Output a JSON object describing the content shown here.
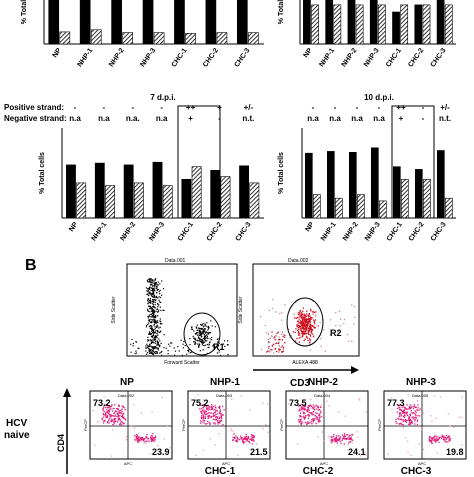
{
  "top_rows": {
    "tick_labels": [
      "NP",
      "NHP-1",
      "NHP-2",
      "NHP-3",
      "CHC-1",
      "CHC-2",
      "CHC-3"
    ],
    "ylabel_left": "% Total cells",
    "ylabel_right": "% Total"
  },
  "strand_table": {
    "positive_label": "Positive strand:",
    "negative_label": "Negative strand:",
    "left_positive": [
      "-",
      "-",
      "-",
      "-",
      "++",
      "+",
      "+/-"
    ],
    "left_negative": [
      "n.a",
      "n.a",
      "n.a.",
      "n.a",
      "+",
      "-",
      "n.t."
    ],
    "right_positive": [
      "-",
      "-",
      "-",
      "-",
      "++",
      "-",
      "+/-"
    ],
    "right_negative": [
      "n.a",
      "n.a",
      "n.a",
      "n.a",
      "+",
      "-",
      "n.t."
    ]
  },
  "panel_b": {
    "label": "B",
    "scatter1": {
      "title": "Data.001",
      "xlabel": "Forward Scatter",
      "ylabel": "Side Scatter",
      "gate": "R1"
    },
    "scatter2": {
      "title": "Data.002",
      "xlabel": "ALEXA 488",
      "ylabel": "Side Scatter",
      "gate": "R2"
    },
    "cd3_label": "CD3",
    "cd4_label": "CD4",
    "hcv_label_1": "HCV",
    "hcv_label_2": "naive",
    "plots": [
      {
        "name": "NP",
        "data": "Data.002",
        "ul": "73.2",
        "lr": "23.9"
      },
      {
        "name": "NHP-1",
        "data": "Data.003",
        "ul": "75.2",
        "lr": "21.5"
      },
      {
        "name": "NHP-2",
        "data": "Data.004",
        "ul": "73.5",
        "lr": "24.1"
      },
      {
        "name": "NHP-3",
        "data": "Data.005",
        "ul": "77.3",
        "lr": "19.8"
      }
    ],
    "bottom_names": [
      "CHC-1",
      "CHC-2",
      "CHC-3"
    ],
    "axis_apc": "APC",
    "axis_pcy": "PerCP"
  },
  "chart_data": [
    {
      "type": "bar",
      "title": "",
      "categories": [
        "NP",
        "NHP-1",
        "NHP-2",
        "NHP-3",
        "CHC-1",
        "CHC-2",
        "CHC-3"
      ],
      "ylabel": "% Total",
      "series": [
        {
          "values": [
            75,
            75,
            75,
            75,
            75,
            75,
            75
          ]
        },
        {
          "values": [
            17,
            20,
            16,
            16,
            15,
            16,
            16
          ]
        }
      ]
    },
    {
      "type": "bar",
      "title": "",
      "categories": [
        "NP",
        "NHP-1",
        "NHP-2",
        "NHP-3",
        "CHC-1",
        "CHC-2",
        "CHC-3"
      ],
      "ylabel": "% Total",
      "series": [
        {
          "values": [
            75,
            75,
            75,
            75,
            45,
            55,
            75
          ]
        },
        {
          "values": [
            55,
            55,
            55,
            55,
            55,
            55,
            55
          ]
        }
      ]
    },
    {
      "type": "bar",
      "title": "7 d.p.i.",
      "categories": [
        "NP",
        "NHP-1",
        "NHP-2",
        "NHP-3",
        "CHC-1",
        "CHC-2",
        "CHC-3"
      ],
      "ylabel": "% Total cells",
      "series": [
        {
          "values": [
            59,
            61,
            59,
            62,
            43,
            53,
            58
          ]
        },
        {
          "values": [
            39,
            36,
            39,
            36,
            57,
            46,
            39
          ]
        }
      ]
    },
    {
      "type": "bar",
      "title": "10 d.p.i.",
      "categories": [
        "NP",
        "NHP-1",
        "NHP-2",
        "NHP-3",
        "CHC-1",
        "CHC-2",
        "CHC-3"
      ],
      "ylabel": "% Total cells",
      "series": [
        {
          "values": [
            72,
            74,
            73,
            78,
            57,
            54,
            75
          ]
        },
        {
          "values": [
            26,
            22,
            26,
            19,
            43,
            43,
            22
          ]
        }
      ]
    }
  ]
}
